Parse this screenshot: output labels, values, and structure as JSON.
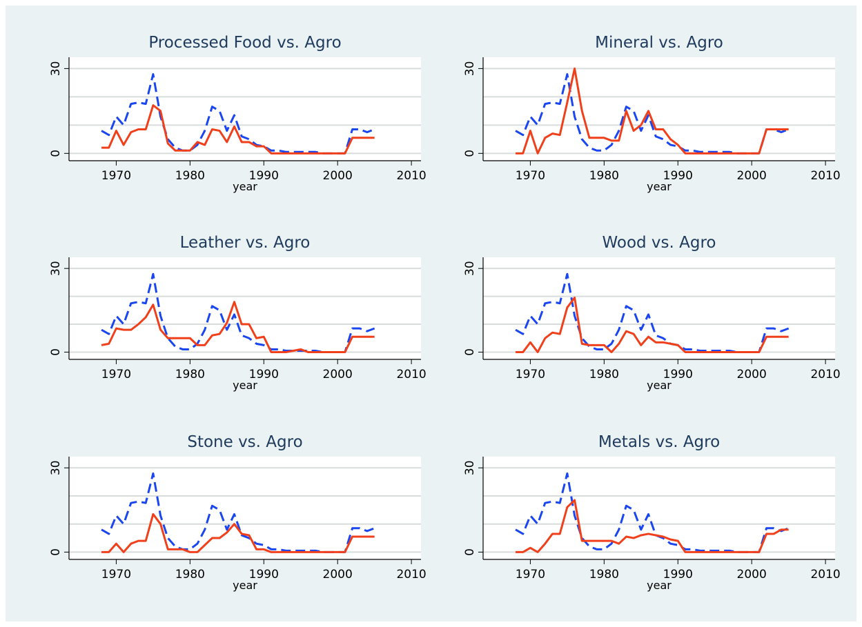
{
  "chart_data": [
    {
      "type": "line",
      "title": "Processed Food vs. Agro",
      "x_label": "year",
      "x": [
        1968,
        1969,
        1970,
        1971,
        1972,
        1973,
        1974,
        1975,
        1976,
        1977,
        1978,
        1979,
        1980,
        1981,
        1982,
        1983,
        1984,
        1985,
        1986,
        1987,
        1988,
        1989,
        1990,
        1991,
        1992,
        1993,
        1994,
        1995,
        1996,
        1997,
        1998,
        1999,
        2000,
        2001,
        2002,
        2003,
        2004,
        2005
      ],
      "series": [
        {
          "color": "#1a46f0",
          "dash": true,
          "values": [
            8,
            6.5,
            13,
            10,
            17.5,
            18,
            17.5,
            28,
            13,
            5,
            2,
            1,
            1,
            3,
            8,
            16.5,
            15,
            8,
            13.5,
            6,
            5,
            3,
            2.5,
            1,
            1,
            0.5,
            0.5,
            0.5,
            0.5,
            0.5,
            0,
            0,
            0,
            0,
            8.5,
            8.5,
            7.5,
            8.5
          ]
        },
        {
          "color": "#f0401b",
          "dash": false,
          "values": [
            2,
            2,
            8,
            3,
            7.5,
            8.5,
            8.5,
            17,
            15,
            3.5,
            1,
            1,
            1,
            4,
            3,
            8.5,
            8,
            4,
            9.5,
            4,
            4,
            2.5,
            2.5,
            0,
            0,
            0,
            0,
            0,
            0,
            0,
            0,
            0,
            0,
            0,
            5.5,
            5.5,
            5.5,
            5.5
          ]
        }
      ],
      "xlim": [
        1963.6,
        2011.3
      ],
      "ylim": [
        -2.6,
        34
      ],
      "xticks": [
        1970,
        1980,
        1990,
        2000,
        2010
      ],
      "yticks": [
        0,
        30
      ],
      "ygrid": [
        0,
        10,
        20,
        30
      ]
    },
    {
      "type": "line",
      "title": "Mineral vs. Agro",
      "x_label": "year",
      "x": [
        1968,
        1969,
        1970,
        1971,
        1972,
        1973,
        1974,
        1975,
        1976,
        1977,
        1978,
        1979,
        1980,
        1981,
        1982,
        1983,
        1984,
        1985,
        1986,
        1987,
        1988,
        1989,
        1990,
        1991,
        1992,
        1993,
        1994,
        1995,
        1996,
        1997,
        1998,
        1999,
        2000,
        2001,
        2002,
        2003,
        2004,
        2005
      ],
      "series": [
        {
          "color": "#1a46f0",
          "dash": true,
          "values": [
            8,
            6.5,
            13,
            10,
            17.5,
            18,
            17.5,
            28,
            13,
            5,
            2,
            1,
            1,
            3,
            8,
            16.5,
            15,
            8,
            13.5,
            6,
            5,
            3,
            2.5,
            1,
            1,
            0.5,
            0.5,
            0.5,
            0.5,
            0.5,
            0,
            0,
            0,
            0,
            8.5,
            8.5,
            7.5,
            8.5
          ]
        },
        {
          "color": "#f0401b",
          "dash": false,
          "values": [
            0,
            0,
            8,
            0,
            5.5,
            7,
            6.5,
            18,
            30,
            15,
            5.5,
            5.5,
            5.5,
            4.5,
            4.5,
            15,
            8,
            10,
            15,
            8.5,
            8.5,
            5,
            3,
            0,
            0,
            0,
            0,
            0,
            0,
            0,
            0,
            0,
            0,
            0,
            8.5,
            8.5,
            8.5,
            8.5
          ]
        }
      ],
      "xlim": [
        1963.6,
        2011.3
      ],
      "ylim": [
        -2.6,
        34
      ],
      "xticks": [
        1970,
        1980,
        1990,
        2000,
        2010
      ],
      "yticks": [
        0,
        30
      ],
      "ygrid": [
        0,
        10,
        20,
        30
      ]
    },
    {
      "type": "line",
      "title": "Leather vs. Agro",
      "x_label": "year",
      "x": [
        1968,
        1969,
        1970,
        1971,
        1972,
        1973,
        1974,
        1975,
        1976,
        1977,
        1978,
        1979,
        1980,
        1981,
        1982,
        1983,
        1984,
        1985,
        1986,
        1987,
        1988,
        1989,
        1990,
        1991,
        1992,
        1993,
        1994,
        1995,
        1996,
        1997,
        1998,
        1999,
        2000,
        2001,
        2002,
        2003,
        2004,
        2005
      ],
      "series": [
        {
          "color": "#1a46f0",
          "dash": true,
          "values": [
            8,
            6.5,
            13,
            10,
            17.5,
            18,
            17.5,
            28,
            13,
            5,
            2,
            1,
            1,
            3,
            8,
            16.5,
            15,
            8,
            13.5,
            6,
            5,
            3,
            2.5,
            1,
            1,
            0.5,
            0.5,
            0.5,
            0.5,
            0.5,
            0,
            0,
            0,
            0,
            8.5,
            8.5,
            7.5,
            8.5
          ]
        },
        {
          "color": "#f0401b",
          "dash": false,
          "values": [
            2.5,
            3,
            8.5,
            8,
            8,
            10,
            12.5,
            17,
            8,
            5,
            5,
            5,
            5,
            2.5,
            2.5,
            6,
            6.5,
            10.5,
            18,
            10,
            10,
            5,
            5.5,
            0,
            0,
            0,
            0.5,
            1,
            0,
            0,
            0,
            0,
            0,
            0,
            5.5,
            5.5,
            5.5,
            5.5
          ]
        }
      ],
      "xlim": [
        1963.6,
        2011.3
      ],
      "ylim": [
        -2.6,
        34
      ],
      "xticks": [
        1970,
        1980,
        1990,
        2000,
        2010
      ],
      "yticks": [
        0,
        30
      ],
      "ygrid": [
        0,
        10,
        20,
        30
      ]
    },
    {
      "type": "line",
      "title": "Wood vs. Agro",
      "x_label": "year",
      "x": [
        1968,
        1969,
        1970,
        1971,
        1972,
        1973,
        1974,
        1975,
        1976,
        1977,
        1978,
        1979,
        1980,
        1981,
        1982,
        1983,
        1984,
        1985,
        1986,
        1987,
        1988,
        1989,
        1990,
        1991,
        1992,
        1993,
        1994,
        1995,
        1996,
        1997,
        1998,
        1999,
        2000,
        2001,
        2002,
        2003,
        2004,
        2005
      ],
      "series": [
        {
          "color": "#1a46f0",
          "dash": true,
          "values": [
            8,
            6.5,
            13,
            10,
            17.5,
            18,
            17.5,
            28,
            13,
            5,
            2,
            1,
            1,
            3,
            8,
            16.5,
            15,
            8,
            13.5,
            6,
            5,
            3,
            2.5,
            1,
            1,
            0.5,
            0.5,
            0.5,
            0.5,
            0.5,
            0,
            0,
            0,
            0,
            8.5,
            8.5,
            7.5,
            8.5
          ]
        },
        {
          "color": "#f0401b",
          "dash": false,
          "values": [
            0,
            0,
            3.5,
            0,
            5,
            7,
            6.5,
            16,
            19.5,
            3,
            2.5,
            2.5,
            2.5,
            0,
            3,
            7.5,
            6.5,
            2.5,
            5.5,
            3.5,
            3.5,
            3,
            2.5,
            0,
            0,
            0,
            0,
            0,
            0,
            0,
            0,
            0,
            0,
            0,
            5.5,
            5.5,
            5.5,
            5.5
          ]
        }
      ],
      "xlim": [
        1963.6,
        2011.3
      ],
      "ylim": [
        -2.6,
        34
      ],
      "xticks": [
        1970,
        1980,
        1990,
        2000,
        2010
      ],
      "yticks": [
        0,
        30
      ],
      "ygrid": [
        0,
        10,
        20,
        30
      ]
    },
    {
      "type": "line",
      "title": "Stone vs. Agro",
      "x_label": "year",
      "x": [
        1968,
        1969,
        1970,
        1971,
        1972,
        1973,
        1974,
        1975,
        1976,
        1977,
        1978,
        1979,
        1980,
        1981,
        1982,
        1983,
        1984,
        1985,
        1986,
        1987,
        1988,
        1989,
        1990,
        1991,
        1992,
        1993,
        1994,
        1995,
        1996,
        1997,
        1998,
        1999,
        2000,
        2001,
        2002,
        2003,
        2004,
        2005
      ],
      "series": [
        {
          "color": "#1a46f0",
          "dash": true,
          "values": [
            8,
            6.5,
            13,
            10,
            17.5,
            18,
            17.5,
            28,
            13,
            5,
            2,
            1,
            1,
            3,
            8,
            16.5,
            15,
            8,
            13.5,
            6,
            5,
            3,
            2.5,
            1,
            1,
            0.5,
            0.5,
            0.5,
            0.5,
            0.5,
            0,
            0,
            0,
            0,
            8.5,
            8.5,
            7.5,
            8.5
          ]
        },
        {
          "color": "#f0401b",
          "dash": false,
          "values": [
            0,
            0,
            3,
            0,
            3,
            4,
            4,
            13.5,
            10,
            1,
            1,
            1,
            0,
            0,
            2.5,
            5,
            5,
            7,
            10,
            6.5,
            6,
            1,
            1,
            0,
            0,
            0,
            0,
            0,
            0,
            0,
            0,
            0,
            0,
            0,
            5.5,
            5.5,
            5.5,
            5.5
          ]
        }
      ],
      "xlim": [
        1963.6,
        2011.3
      ],
      "ylim": [
        -2.6,
        34
      ],
      "xticks": [
        1970,
        1980,
        1990,
        2000,
        2010
      ],
      "yticks": [
        0,
        30
      ],
      "ygrid": [
        0,
        10,
        20,
        30
      ]
    },
    {
      "type": "line",
      "title": "Metals vs. Agro",
      "x_label": "year",
      "x": [
        1968,
        1969,
        1970,
        1971,
        1972,
        1973,
        1974,
        1975,
        1976,
        1977,
        1978,
        1979,
        1980,
        1981,
        1982,
        1983,
        1984,
        1985,
        1986,
        1987,
        1988,
        1989,
        1990,
        1991,
        1992,
        1993,
        1994,
        1995,
        1996,
        1997,
        1998,
        1999,
        2000,
        2001,
        2002,
        2003,
        2004,
        2005
      ],
      "series": [
        {
          "color": "#1a46f0",
          "dash": true,
          "values": [
            8,
            6.5,
            13,
            10,
            17.5,
            18,
            17.5,
            28,
            13,
            5,
            2,
            1,
            1,
            3,
            8,
            16.5,
            15,
            8,
            13.5,
            6,
            5,
            3,
            2.5,
            1,
            1,
            0.5,
            0.5,
            0.5,
            0.5,
            0.5,
            0,
            0,
            0,
            0,
            8.5,
            8.5,
            7.5,
            8.5
          ]
        },
        {
          "color": "#f0401b",
          "dash": false,
          "values": [
            0,
            0,
            1.5,
            0,
            3,
            6.5,
            6.5,
            16,
            18.5,
            4,
            4,
            4,
            4,
            4,
            3,
            5.5,
            5,
            6,
            6.5,
            6,
            5.5,
            4.5,
            4,
            0,
            0,
            0,
            0,
            0,
            0,
            0,
            0,
            0,
            0,
            0,
            6.5,
            6.5,
            8,
            8
          ]
        }
      ],
      "xlim": [
        1963.6,
        2011.3
      ],
      "ylim": [
        -2.6,
        34
      ],
      "xticks": [
        1970,
        1980,
        1990,
        2000,
        2010
      ],
      "yticks": [
        0,
        30
      ],
      "ygrid": [
        0,
        10,
        20,
        30
      ]
    }
  ]
}
